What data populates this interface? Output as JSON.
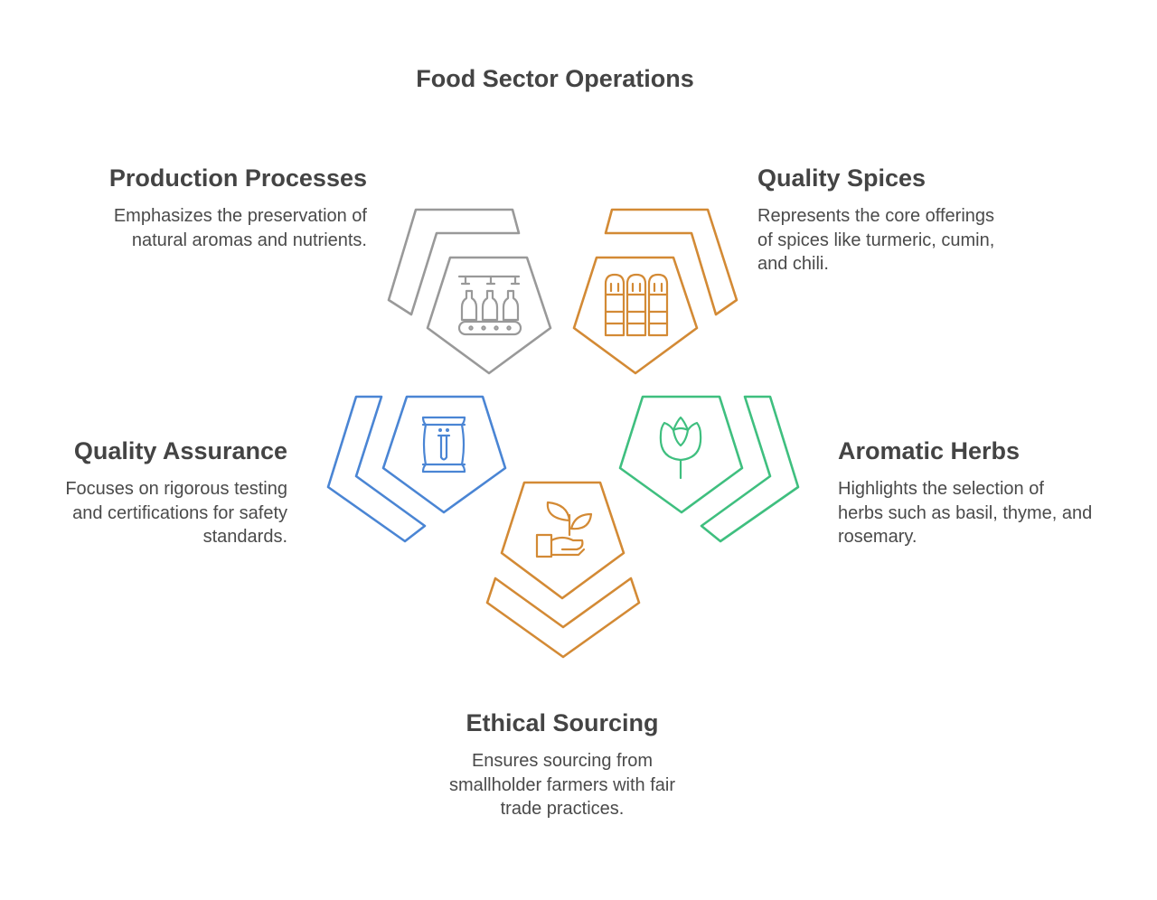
{
  "title": "Food Sector Operations",
  "colors": {
    "production": "#999999",
    "spices": "#d38a35",
    "assurance": "#4a85d4",
    "herbs": "#3fbf7f",
    "ethical": "#d38a35"
  },
  "sections": {
    "production": {
      "heading": "Production Processes",
      "lines": [
        "Emphasizes the preservation of",
        "natural aromas and nutrients."
      ],
      "icon": "bottling-line-icon"
    },
    "spices": {
      "heading": "Quality Spices",
      "lines": [
        "Represents the core offerings",
        "of spices like turmeric, cumin,",
        "and chili."
      ],
      "icon": "spice-jars-icon"
    },
    "assurance": {
      "heading": "Quality Assurance",
      "lines": [
        "Focuses on rigorous testing",
        "and certifications for safety",
        "standards."
      ],
      "icon": "test-bag-icon"
    },
    "herbs": {
      "heading": "Aromatic Herbs",
      "lines": [
        "Highlights the selection of",
        "herbs such as basil, thyme, and",
        "rosemary."
      ],
      "icon": "rose-flower-icon"
    },
    "ethical": {
      "heading": "Ethical Sourcing",
      "lines": [
        "Ensures sourcing from",
        "smallholder farmers with fair",
        "trade practices."
      ],
      "icon": "plant-hand-icon"
    }
  }
}
